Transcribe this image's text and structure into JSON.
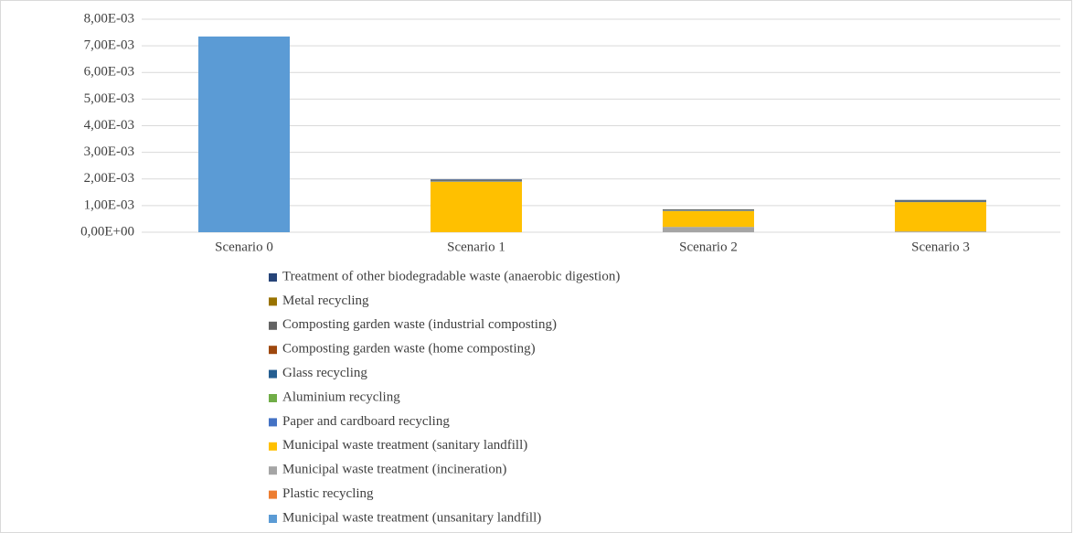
{
  "chart_data": {
    "type": "bar",
    "stacked": true,
    "categories": [
      "Scenario 0",
      "Scenario 1",
      "Scenario 2",
      "Scenario 3"
    ],
    "series": [
      {
        "name": "Municipal waste treatment (unsanitary landfill)",
        "color": "#5b9bd5",
        "values": [
          0.00735,
          0,
          0,
          0
        ]
      },
      {
        "name": "Plastic recycling",
        "color": "#ed7d31",
        "values": [
          0,
          0,
          0,
          0
        ]
      },
      {
        "name": "Municipal waste treatment (incineration)",
        "color": "#a5a5a5",
        "values": [
          0,
          0,
          0.0002,
          3e-05
        ]
      },
      {
        "name": "Municipal waste treatment (sanitary landfill)",
        "color": "#ffc000",
        "values": [
          0,
          0.0019,
          0.0006,
          0.0011
        ]
      },
      {
        "name": "Paper and cardboard recycling",
        "color": "#4472c4",
        "values": [
          0,
          1e-05,
          1e-05,
          1e-05
        ]
      },
      {
        "name": "Aluminium recycling",
        "color": "#70ad47",
        "values": [
          0,
          0,
          0,
          0
        ]
      },
      {
        "name": "Glass recycling",
        "color": "#255e91",
        "values": [
          0,
          1e-05,
          1e-05,
          1e-05
        ]
      },
      {
        "name": "Composting garden waste (home composting)",
        "color": "#9e480e",
        "values": [
          0,
          0,
          0,
          0
        ]
      },
      {
        "name": "Composting garden waste (industrial composting)",
        "color": "#636363",
        "values": [
          0,
          2e-05,
          1e-05,
          2e-05
        ]
      },
      {
        "name": "Metal recycling",
        "color": "#997300",
        "values": [
          0,
          1e-05,
          1e-05,
          1e-05
        ]
      },
      {
        "name": "Treatment of other biodegradable waste (anaerobic digestion)",
        "color": "#264478",
        "values": [
          0,
          3e-05,
          2e-05,
          3e-05
        ]
      }
    ],
    "ylim": [
      0,
      0.008
    ],
    "yticks": [
      {
        "value": 0,
        "label": "0,00E+00"
      },
      {
        "value": 0.001,
        "label": "1,00E-03"
      },
      {
        "value": 0.002,
        "label": "2,00E-03"
      },
      {
        "value": 0.003,
        "label": "3,00E-03"
      },
      {
        "value": 0.004,
        "label": "4,00E-03"
      },
      {
        "value": 0.005,
        "label": "5,00E-03"
      },
      {
        "value": 0.006,
        "label": "6,00E-03"
      },
      {
        "value": 0.007,
        "label": "7,00E-03"
      },
      {
        "value": 0.008,
        "label": "8,00E-03"
      }
    ],
    "grid": true,
    "legend": "bottom"
  }
}
